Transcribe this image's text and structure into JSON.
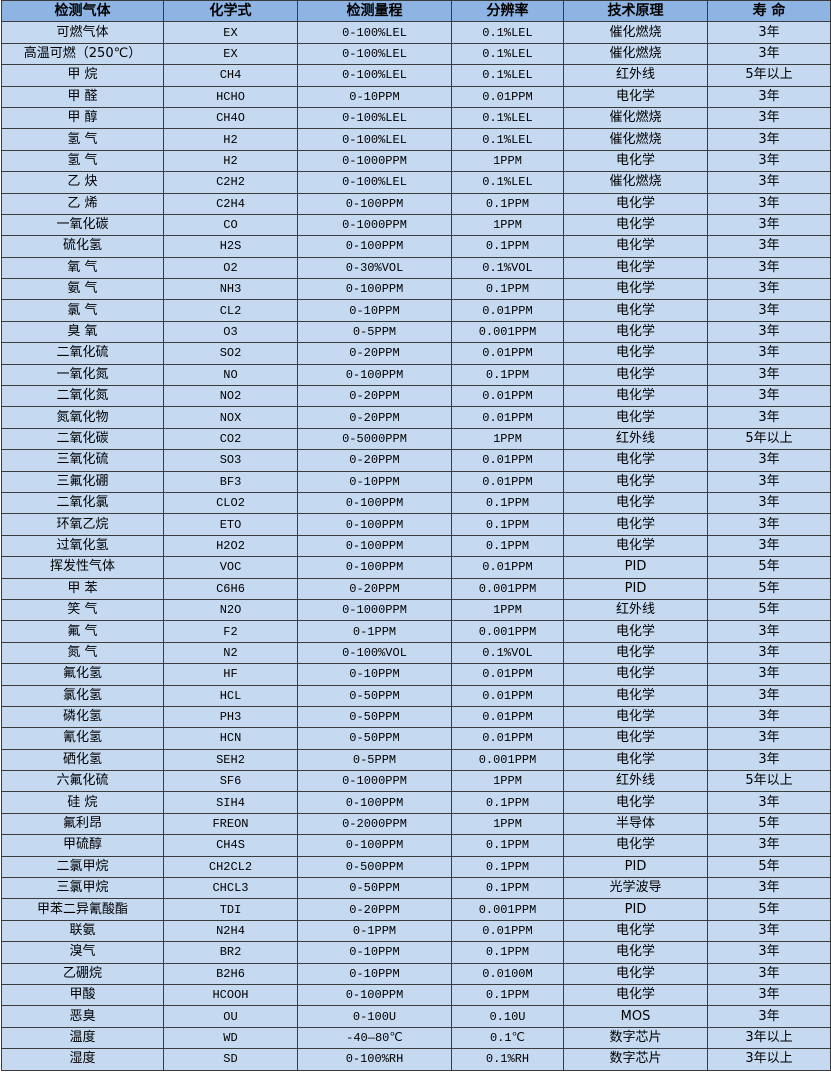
{
  "table": {
    "headers": [
      "检测气体",
      "化学式",
      "检测量程",
      "分辨率",
      "技术原理",
      "寿 命"
    ],
    "rows": [
      [
        "可燃气体",
        "EX",
        "0-100%LEL",
        "0.1%LEL",
        "催化燃烧",
        "3年"
      ],
      [
        "高温可燃（250℃）",
        "EX",
        "0-100%LEL",
        "0.1%LEL",
        "催化燃烧",
        "3年"
      ],
      [
        "甲 烷",
        "CH4",
        "0-100%LEL",
        "0.1%LEL",
        "红外线",
        "5年以上"
      ],
      [
        "甲 醛",
        "HCHO",
        "0-10PPM",
        "0.01PPM",
        "电化学",
        "3年"
      ],
      [
        "甲 醇",
        "CH4O",
        "0-100%LEL",
        "0.1%LEL",
        "催化燃烧",
        "3年"
      ],
      [
        "氢 气",
        "H2",
        "0-100%LEL",
        "0.1%LEL",
        "催化燃烧",
        "3年"
      ],
      [
        "氢 气",
        "H2",
        "0-1000PPM",
        "1PPM",
        "电化学",
        "3年"
      ],
      [
        "乙 炔",
        "C2H2",
        "0-100%LEL",
        "0.1%LEL",
        "催化燃烧",
        "3年"
      ],
      [
        "乙 烯",
        "C2H4",
        "0-100PPM",
        "0.1PPM",
        "电化学",
        "3年"
      ],
      [
        "一氧化碳",
        "CO",
        "0-1000PPM",
        "1PPM",
        "电化学",
        "3年"
      ],
      [
        "硫化氢",
        "H2S",
        "0-100PPM",
        "0.1PPM",
        "电化学",
        "3年"
      ],
      [
        "氧 气",
        "O2",
        "0-30%VOL",
        "0.1%VOL",
        "电化学",
        "3年"
      ],
      [
        "氨 气",
        "NH3",
        "0-100PPM",
        "0.1PPM",
        "电化学",
        "3年"
      ],
      [
        "氯 气",
        "CL2",
        "0-10PPM",
        "0.01PPM",
        "电化学",
        "3年"
      ],
      [
        "臭 氧",
        "O3",
        "0-5PPM",
        "0.001PPM",
        "电化学",
        "3年"
      ],
      [
        "二氧化硫",
        "SO2",
        "0-20PPM",
        "0.01PPM",
        "电化学",
        "3年"
      ],
      [
        "一氧化氮",
        "NO",
        "0-100PPM",
        "0.1PPM",
        "电化学",
        "3年"
      ],
      [
        "二氧化氮",
        "NO2",
        "0-20PPM",
        "0.01PPM",
        "电化学",
        "3年"
      ],
      [
        "氮氧化物",
        "NOX",
        "0-20PPM",
        "0.01PPM",
        "电化学",
        "3年"
      ],
      [
        "二氧化碳",
        "CO2",
        "0-5000PPM",
        "1PPM",
        "红外线",
        "5年以上"
      ],
      [
        "三氧化硫",
        "SO3",
        "0-20PPM",
        "0.01PPM",
        "电化学",
        "3年"
      ],
      [
        "三氟化硼",
        "BF3",
        "0-10PPM",
        "0.01PPM",
        "电化学",
        "3年"
      ],
      [
        "二氧化氯",
        "CLO2",
        "0-100PPM",
        "0.1PPM",
        "电化学",
        "3年"
      ],
      [
        "环氧乙烷",
        "ETO",
        "0-100PPM",
        "0.1PPM",
        "电化学",
        "3年"
      ],
      [
        "过氧化氢",
        "H2O2",
        "0-100PPM",
        "0.1PPM",
        "电化学",
        "3年"
      ],
      [
        "挥发性气体",
        "VOC",
        "0-100PPM",
        "0.01PPM",
        "PID",
        "5年"
      ],
      [
        "甲 苯",
        "C6H6",
        "0-20PPM",
        "0.001PPM",
        "PID",
        "5年"
      ],
      [
        "笑 气",
        "N2O",
        "0-1000PPM",
        "1PPM",
        "红外线",
        "5年"
      ],
      [
        "氟 气",
        "F2",
        "0-1PPM",
        "0.001PPM",
        "电化学",
        "3年"
      ],
      [
        "氮 气",
        "N2",
        "0-100%VOL",
        "0.1%VOL",
        "电化学",
        "3年"
      ],
      [
        "氟化氢",
        "HF",
        "0-10PPM",
        "0.01PPM",
        "电化学",
        "3年"
      ],
      [
        "氯化氢",
        "HCL",
        "0-50PPM",
        "0.01PPM",
        "电化学",
        "3年"
      ],
      [
        "磷化氢",
        "PH3",
        "0-50PPM",
        "0.01PPM",
        "电化学",
        "3年"
      ],
      [
        "氰化氢",
        "HCN",
        "0-50PPM",
        "0.01PPM",
        "电化学",
        "3年"
      ],
      [
        "硒化氢",
        "SEH2",
        "0-5PPM",
        "0.001PPM",
        "电化学",
        "3年"
      ],
      [
        "六氟化硫",
        "SF6",
        "0-1000PPM",
        "1PPM",
        "红外线",
        "5年以上"
      ],
      [
        "硅 烷",
        "SIH4",
        "0-100PPM",
        "0.1PPM",
        "电化学",
        "3年"
      ],
      [
        "氟利昂",
        "FREON",
        "0-2000PPM",
        "1PPM",
        "半导体",
        "5年"
      ],
      [
        "甲硫醇",
        "CH4S",
        "0-100PPM",
        "0.1PPM",
        "电化学",
        "3年"
      ],
      [
        "二氯甲烷",
        "CH2CL2",
        "0-500PPM",
        "0.1PPM",
        "PID",
        "5年"
      ],
      [
        "三氯甲烷",
        "CHCL3",
        "0-50PPM",
        "0.1PPM",
        "光学波导",
        "3年"
      ],
      [
        "甲苯二异氰酸酯",
        "TDI",
        "0-20PPM",
        "0.001PPM",
        "PID",
        "5年"
      ],
      [
        "联氨",
        "N2H4",
        "0-1PPM",
        "0.01PPM",
        "电化学",
        "3年"
      ],
      [
        "溴气",
        "BR2",
        "0-10PPM",
        "0.1PPM",
        "电化学",
        "3年"
      ],
      [
        "乙硼烷",
        "B2H6",
        "0-10PPM",
        "0.0100M",
        "电化学",
        "3年"
      ],
      [
        "甲酸",
        "HCOOH",
        "0-100PPM",
        "0.1PPM",
        "电化学",
        "3年"
      ],
      [
        "恶臭",
        "OU",
        "0-100U",
        "0.10U",
        "MOS",
        "3年"
      ],
      [
        "温度",
        "WD",
        "-40—80℃",
        "0.1℃",
        "数字芯片",
        "3年以上"
      ],
      [
        "湿度",
        "SD",
        "0-100%RH",
        "0.1%RH",
        "数字芯片",
        "3年以上"
      ]
    ]
  },
  "colors": {
    "header_bg": "#8db4e2",
    "row_bg": "#c5d9f1",
    "border": "#3c3c3c"
  }
}
